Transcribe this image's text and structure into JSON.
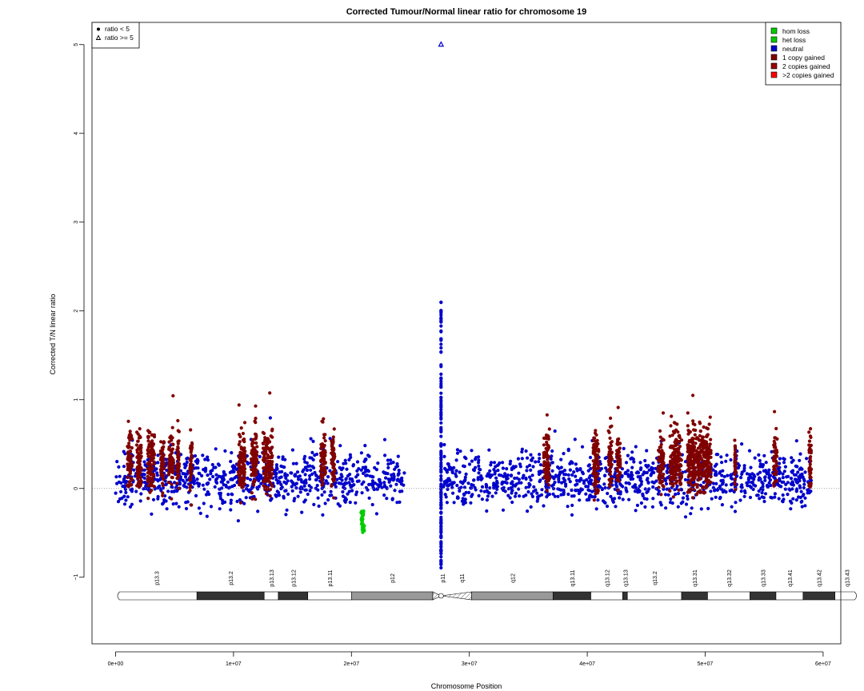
{
  "chart_data": {
    "type": "scatter",
    "title": "Corrected Tumour/Normal linear ratio for chromosome  19",
    "xlabel": "Chromosome Position",
    "ylabel": "Corrected T/N linear ratio",
    "xlim": [
      -2000000,
      61500000
    ],
    "ylim": [
      -1.75,
      5.25
    ],
    "x_ticks": [
      0,
      10000000,
      20000000,
      30000000,
      40000000,
      50000000,
      60000000
    ],
    "x_tick_labels": [
      "0e+00",
      "1e+07",
      "2e+07",
      "3e+07",
      "4e+07",
      "5e+07",
      "6e+07"
    ],
    "y_ticks": [
      -1,
      0,
      1,
      2,
      3,
      4,
      5
    ],
    "y_tick_labels": [
      "−1",
      "0",
      "1",
      "2",
      "3",
      "4",
      "5"
    ],
    "reference_line_y": 0,
    "outlier": {
      "x": 27600000,
      "y": 5.0,
      "state": "neutral"
    },
    "centromere_spike": {
      "x": 27600000,
      "y_min": -0.9,
      "y_max": 2.1
    },
    "segments": [
      {
        "start": 0,
        "end": 24500000,
        "state": "neutral",
        "mean": 0.1,
        "spread": 0.55
      },
      {
        "start": 27800000,
        "end": 59000000,
        "state": "neutral",
        "mean": 0.1,
        "spread": 0.55
      }
    ],
    "gain_regions": [
      [
        1000000,
        1400000
      ],
      [
        1800000,
        2200000
      ],
      [
        2700000,
        3300000
      ],
      [
        3800000,
        4100000
      ],
      [
        4500000,
        4900000
      ],
      [
        5200000,
        5400000
      ],
      [
        6300000,
        6500000
      ],
      [
        10400000,
        11000000
      ],
      [
        11500000,
        12000000
      ],
      [
        12500000,
        13300000
      ],
      [
        17400000,
        17800000
      ],
      [
        18300000,
        18600000
      ],
      [
        36300000,
        36800000
      ],
      [
        40500000,
        41000000
      ],
      [
        41800000,
        42100000
      ],
      [
        42500000,
        42800000
      ],
      [
        46000000,
        46500000
      ],
      [
        47000000,
        48000000
      ],
      [
        48500000,
        50500000
      ],
      [
        52500000,
        52600000
      ],
      [
        55800000,
        56100000
      ],
      [
        58800000,
        59000000
      ]
    ],
    "loss_regions": [
      [
        20800000,
        21100000
      ]
    ],
    "cytobands": [
      {
        "name": "p13.3",
        "start": 0,
        "end": 6900000,
        "stain": "gneg"
      },
      {
        "name": "p13.2",
        "start": 6900000,
        "end": 12600000,
        "stain": "gpos75"
      },
      {
        "name": "p13.13",
        "start": 12600000,
        "end": 13800000,
        "stain": "gneg"
      },
      {
        "name": "p13.12",
        "start": 13800000,
        "end": 16300000,
        "stain": "gpos75"
      },
      {
        "name": "p13.11",
        "start": 16300000,
        "end": 20000000,
        "stain": "gneg"
      },
      {
        "name": "p12",
        "start": 20000000,
        "end": 26900000,
        "stain": "gvar"
      },
      {
        "name": "p11",
        "start": 26900000,
        "end": 28500000,
        "stain": "acen"
      },
      {
        "name": "q11",
        "start": 28500000,
        "end": 30200000,
        "stain": "acen"
      },
      {
        "name": "q12",
        "start": 30200000,
        "end": 37100000,
        "stain": "gvar"
      },
      {
        "name": "q13.11",
        "start": 37100000,
        "end": 40300000,
        "stain": "gpos75"
      },
      {
        "name": "q13.12",
        "start": 40300000,
        "end": 43000000,
        "stain": "gneg"
      },
      {
        "name": "q13.13",
        "start": 43000000,
        "end": 43400000,
        "stain": "gpos75"
      },
      {
        "name": "q13.2",
        "start": 43400000,
        "end": 48000000,
        "stain": "gneg"
      },
      {
        "name": "q13.31",
        "start": 48000000,
        "end": 50200000,
        "stain": "gpos75"
      },
      {
        "name": "q13.32",
        "start": 50200000,
        "end": 53800000,
        "stain": "gneg"
      },
      {
        "name": "q13.33",
        "start": 53800000,
        "end": 56000000,
        "stain": "gpos75"
      },
      {
        "name": "q13.41",
        "start": 56000000,
        "end": 58300000,
        "stain": "gneg"
      },
      {
        "name": "q13.42",
        "start": 58300000,
        "end": 61000000,
        "stain": "gpos75"
      },
      {
        "name": "q13.43",
        "start": 61000000,
        "end": 63000000,
        "stain": "gneg"
      }
    ],
    "legend_shape": {
      "placement": "top-left",
      "entries": [
        {
          "label": "ratio < 5",
          "symbol": "filled-circle"
        },
        {
          "label": "ratio >= 5",
          "symbol": "open-triangle"
        }
      ]
    },
    "legend_state": {
      "placement": "top-right",
      "entries": [
        {
          "label": "hom loss",
          "color": "#00cc00"
        },
        {
          "label": "het loss",
          "color": "#00cc00"
        },
        {
          "label": "neutral",
          "color": "#0000cc"
        },
        {
          "label": "1 copy gained",
          "color": "#800000"
        },
        {
          "label": "2 copies gained",
          "color": "#990000"
        },
        {
          "label": ">2 copies gained",
          "color": "#ff0000"
        }
      ]
    },
    "colors": {
      "neutral": "#0000cc",
      "gain": "#800000",
      "loss": "#00cc00",
      "gneg": "#ffffff",
      "gpos75": "#333333",
      "gvar": "#999999",
      "reference_line": "#888888"
    }
  }
}
